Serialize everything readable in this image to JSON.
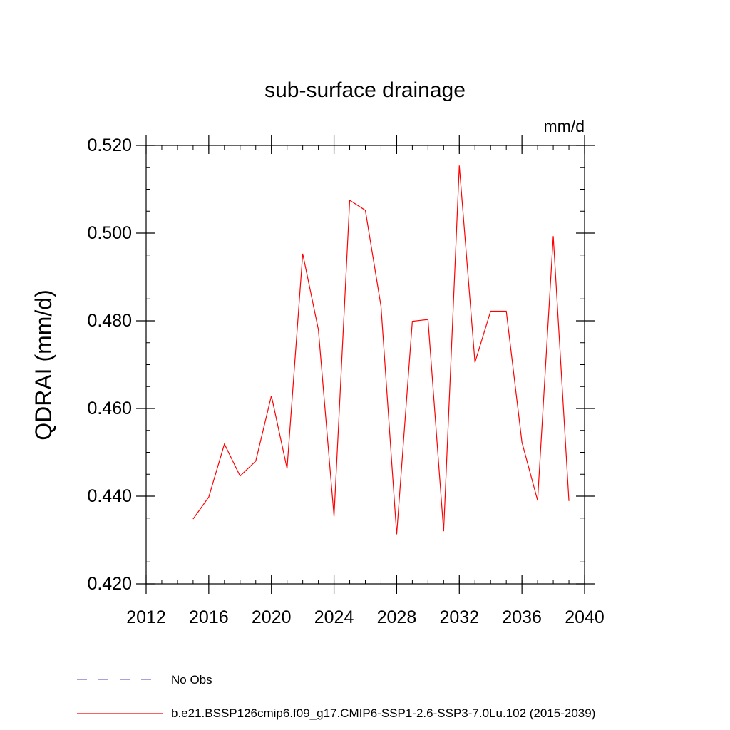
{
  "chart_data": {
    "type": "line",
    "title": "sub-surface drainage",
    "units_label": "mm/d",
    "ylabel": "QDRAI  (mm/d)",
    "xlabel": "",
    "xlim": [
      2012,
      2040
    ],
    "ylim": [
      0.42,
      0.52
    ],
    "x_ticks": [
      2012,
      2016,
      2020,
      2024,
      2028,
      2032,
      2036,
      2040
    ],
    "x_tick_labels": [
      "2012",
      "2016",
      "2020",
      "2024",
      "2028",
      "2032",
      "2036",
      "2040"
    ],
    "y_ticks": [
      0.42,
      0.44,
      0.46,
      0.48,
      0.5,
      0.52
    ],
    "y_tick_labels": [
      "0.420",
      "0.440",
      "0.460",
      "0.480",
      "0.500",
      "0.520"
    ],
    "grid": false,
    "series": [
      {
        "name": "b.e21.BSSP126cmip6.f09_g17.CMIP6-SSP1-2.6-SSP3-7.0Lu.102 (2015-2039)",
        "color": "#ff0000",
        "x": [
          2015,
          2016,
          2017,
          2018,
          2019,
          2020,
          2021,
          2022,
          2023,
          2024,
          2025,
          2026,
          2027,
          2028,
          2029,
          2030,
          2031,
          2032,
          2033,
          2034,
          2035,
          2036,
          2037,
          2038,
          2039
        ],
        "values": [
          0.4348,
          0.4398,
          0.4519,
          0.4446,
          0.448,
          0.4629,
          0.4463,
          0.4953,
          0.478,
          0.4354,
          0.5075,
          0.5052,
          0.4833,
          0.4313,
          0.4799,
          0.4803,
          0.432,
          0.5154,
          0.4705,
          0.4822,
          0.4822,
          0.4523,
          0.439,
          0.4993,
          0.4389
        ]
      }
    ],
    "legend": [
      {
        "label": "No Obs",
        "style": "dashed",
        "color": "#7b68c8"
      },
      {
        "label": "b.e21.BSSP126cmip6.f09_g17.CMIP6-SSP1-2.6-SSP3-7.0Lu.102 (2015-2039)",
        "style": "solid",
        "color": "#ff0000"
      }
    ],
    "legend_position": "bottom-left"
  }
}
